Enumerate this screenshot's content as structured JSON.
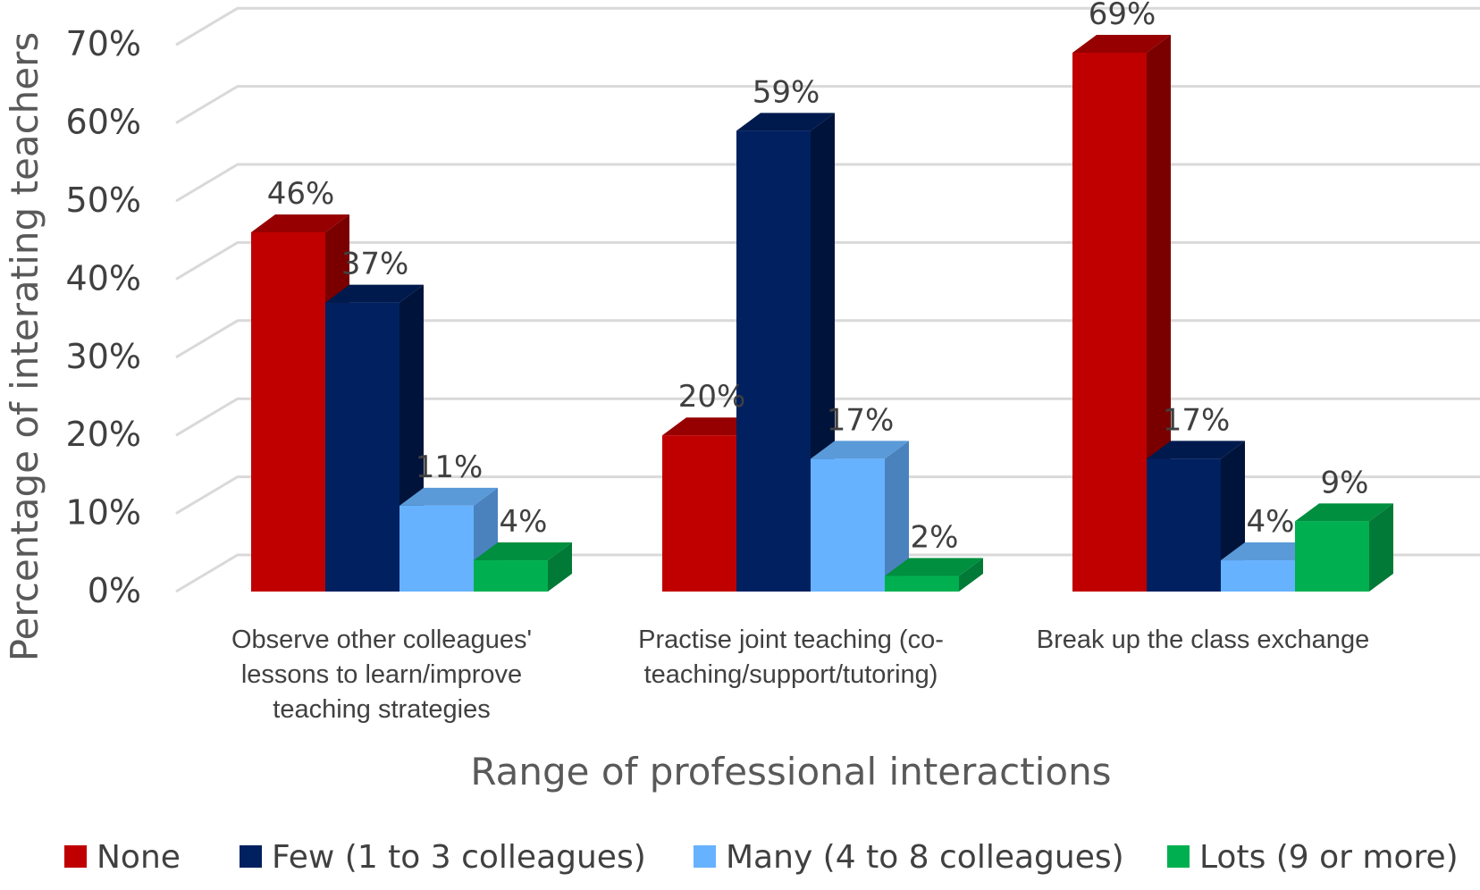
{
  "chart_data": {
    "type": "bar",
    "style": "3d-clustered-column",
    "categories": [
      [
        "Observe other colleagues'",
        "lessons to learn/improve",
        "teaching strategies"
      ],
      [
        "Practise joint teaching (co-",
        "teaching/support/tutoring)"
      ],
      [
        "Break up the class exchange"
      ]
    ],
    "series": [
      {
        "name": "None",
        "values": [
          46,
          20,
          69
        ],
        "labels": [
          "46%",
          "20%",
          "69%"
        ],
        "color": "#C00000",
        "top_color": "#960000",
        "side_color": "#7A0000"
      },
      {
        "name": "Few (1 to 3 colleagues)",
        "values": [
          37,
          59,
          17
        ],
        "labels": [
          "37%",
          "59%",
          "17%"
        ],
        "color": "#002060",
        "top_color": "#001A4D",
        "side_color": "#00133A"
      },
      {
        "name": "Many (4 to 8 colleagues)",
        "values": [
          11,
          17,
          4
        ],
        "labels": [
          "11%",
          "17%",
          "4%"
        ],
        "color": "#66B2FF",
        "top_color": "#5A9AD8",
        "side_color": "#4A82BE"
      },
      {
        "name": "Lots (9 or more)",
        "values": [
          4,
          2,
          9
        ],
        "labels": [
          "4%",
          "2%",
          "9%"
        ],
        "color": "#00B050",
        "top_color": "#008F3F",
        "side_color": "#007A36"
      }
    ],
    "y_ticks": [
      "0%",
      "10%",
      "20%",
      "30%",
      "40%",
      "50%",
      "60%",
      "70%"
    ],
    "ylim": [
      0,
      70
    ],
    "xlabel": "Range of professional interactions",
    "ylabel": "Percentage of interating teachers",
    "legend_position": "bottom"
  }
}
